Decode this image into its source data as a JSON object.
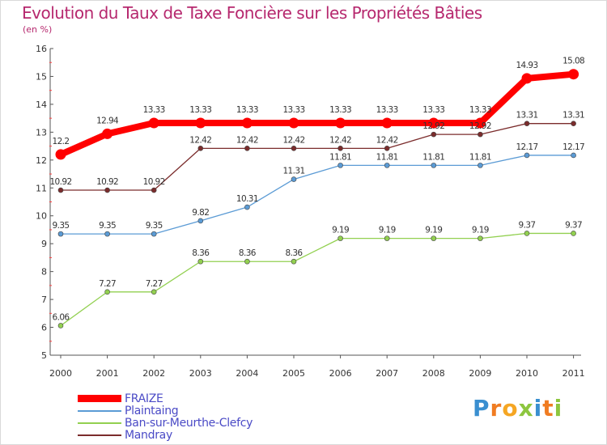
{
  "title": "Evolution du Taux de Taxe Foncière sur les Propriétés Bâties",
  "subtitle": "(en %)",
  "logo": {
    "text": "Proxiti",
    "letters": [
      "P",
      "r",
      "o",
      "x",
      "i",
      "t",
      "i"
    ],
    "colors": [
      "#3a8fd0",
      "#f07c22",
      "#f5a623",
      "#8dc63f",
      "#3a8fd0",
      "#f07c22",
      "#8dc63f"
    ]
  },
  "chart_data": {
    "type": "line",
    "title": "Evolution du Taux de Taxe Foncière sur les Propriétés Bâties",
    "ylabel": "(en %)",
    "xlabel": "",
    "ylim": [
      5,
      16
    ],
    "yticks": [
      "5",
      "6",
      "7",
      "8",
      "9",
      "10",
      "11",
      "12",
      "13",
      "14",
      "15",
      "16"
    ],
    "categories": [
      "2000",
      "2001",
      "2002",
      "2003",
      "2004",
      "2005",
      "2006",
      "2007",
      "2008",
      "2009",
      "2010",
      "2011"
    ],
    "grid": false,
    "legend_position": "bottom-left",
    "series": [
      {
        "name": "FRAIZE",
        "color": "#ff0000",
        "thick": true,
        "values": [
          12.2,
          12.94,
          13.33,
          13.33,
          13.33,
          13.33,
          13.33,
          13.33,
          13.33,
          13.33,
          14.93,
          15.08
        ],
        "labels": [
          "12.2",
          "12.94",
          "13.33",
          "13.33",
          "13.33",
          "13.33",
          "13.33",
          "13.33",
          "13.33",
          "13.33",
          "14.93",
          "15.08"
        ]
      },
      {
        "name": "Plaintaing",
        "color": "#5b9bd5",
        "thick": false,
        "values": [
          9.35,
          9.35,
          9.35,
          9.82,
          10.31,
          11.31,
          11.81,
          11.81,
          11.81,
          11.81,
          12.17,
          12.17
        ],
        "labels": [
          "9.35",
          "9.35",
          "9.35",
          "9.82",
          "10.31",
          "11.31",
          "11.81",
          "11.81",
          "11.81",
          "11.81",
          "12.17",
          "12.17"
        ]
      },
      {
        "name": "Ban-sur-Meurthe-Clefcy",
        "color": "#92d050",
        "thick": false,
        "values": [
          6.06,
          7.27,
          7.27,
          8.36,
          8.36,
          8.36,
          9.19,
          9.19,
          9.19,
          9.19,
          9.37,
          9.37
        ],
        "labels": [
          "6.06",
          "7.27",
          "7.27",
          "8.36",
          "8.36",
          "8.36",
          "9.19",
          "9.19",
          "9.19",
          "9.19",
          "9.37",
          "9.37"
        ]
      },
      {
        "name": "Mandray",
        "color": "#7b2c2c",
        "thick": false,
        "values": [
          10.92,
          10.92,
          10.92,
          12.42,
          12.42,
          12.42,
          12.42,
          12.42,
          12.92,
          12.92,
          13.31,
          13.31
        ],
        "labels": [
          "10.92",
          "10.92",
          "10.92",
          "12.42",
          "12.42",
          "12.42",
          "12.42",
          "12.42",
          "12.92",
          "12.92",
          "13.31",
          "13.31"
        ]
      }
    ]
  }
}
